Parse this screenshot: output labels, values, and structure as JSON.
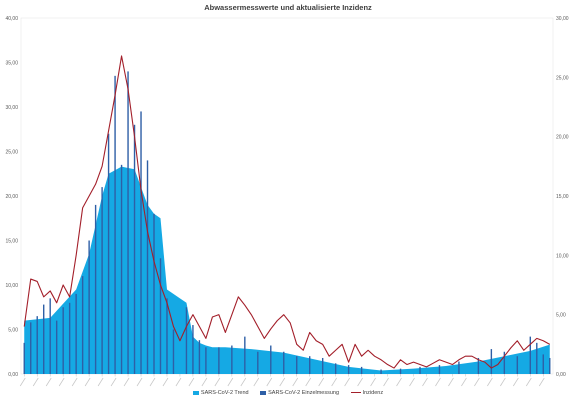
{
  "chart_data": {
    "type": "area",
    "title": "Abwassermesswerte und aktualisierte Inzidenz",
    "y_left": {
      "ylim": [
        0,
        40
      ],
      "ticks": [
        "0,00",
        "5,00",
        "10,00",
        "15,00",
        "20,00",
        "25,00",
        "30,00",
        "35,00",
        "40,00"
      ]
    },
    "y_right": {
      "ylim": [
        0,
        30
      ],
      "ticks": [
        "0,00",
        "5,00",
        "10,00",
        "15,00",
        "20,00",
        "25,00",
        "30,00"
      ]
    },
    "x_count": 82,
    "grid": false,
    "legend_position": "bottom",
    "series": [
      {
        "name": "SARS-CoV-2 Trend",
        "kind": "area",
        "axis": "left",
        "color": "#15a9e4",
        "points": [
          [
            0,
            6.0
          ],
          [
            4,
            6.3
          ],
          [
            8,
            9.5
          ],
          [
            10,
            13.5
          ],
          [
            12,
            20.0
          ],
          [
            13,
            22.5
          ],
          [
            15,
            23.3
          ],
          [
            17,
            23.0
          ],
          [
            18,
            21.0
          ],
          [
            19,
            19.0
          ],
          [
            20,
            18.0
          ],
          [
            21,
            17.5
          ],
          [
            22,
            9.5
          ],
          [
            24,
            8.5
          ],
          [
            25,
            8.0
          ],
          [
            26,
            4.2
          ],
          [
            27,
            3.5
          ],
          [
            28,
            3.2
          ],
          [
            29,
            3.0
          ],
          [
            31,
            3.0
          ],
          [
            35,
            2.8
          ],
          [
            40,
            2.4
          ],
          [
            45,
            1.6
          ],
          [
            50,
            0.8
          ],
          [
            55,
            0.4
          ],
          [
            60,
            0.6
          ],
          [
            65,
            0.9
          ],
          [
            70,
            1.4
          ],
          [
            74,
            2.0
          ],
          [
            78,
            2.6
          ],
          [
            81,
            3.3
          ]
        ]
      },
      {
        "name": "SARS-CoV-2 Einzelmessung",
        "kind": "bar",
        "axis": "left",
        "color": "#2e5fa6",
        "points": [
          [
            0,
            3.5
          ],
          [
            1,
            5.8
          ],
          [
            2,
            6.5
          ],
          [
            3,
            7.8
          ],
          [
            4,
            8.5
          ],
          [
            5,
            6.0
          ],
          [
            6,
            7.5
          ],
          [
            7,
            8.0
          ],
          [
            8,
            9.0
          ],
          [
            9,
            11.0
          ],
          [
            10,
            15.0
          ],
          [
            11,
            19.0
          ],
          [
            12,
            21.0
          ],
          [
            13,
            27.0
          ],
          [
            14,
            33.5
          ],
          [
            15,
            23.5
          ],
          [
            16,
            34.0
          ],
          [
            17,
            28.0
          ],
          [
            18,
            29.5
          ],
          [
            19,
            24.0
          ],
          [
            20,
            18.0
          ],
          [
            21,
            13.0
          ],
          [
            22,
            8.5
          ],
          [
            23,
            5.0
          ],
          [
            25,
            7.5
          ],
          [
            26,
            5.5
          ],
          [
            27,
            3.8
          ],
          [
            28,
            3.0
          ],
          [
            30,
            3.0
          ],
          [
            32,
            3.2
          ],
          [
            34,
            4.2
          ],
          [
            36,
            2.5
          ],
          [
            38,
            3.2
          ],
          [
            40,
            2.5
          ],
          [
            42,
            2.0
          ],
          [
            44,
            2.0
          ],
          [
            46,
            1.8
          ],
          [
            48,
            1.2
          ],
          [
            50,
            1.0
          ],
          [
            52,
            0.8
          ],
          [
            55,
            0.5
          ],
          [
            58,
            0.6
          ],
          [
            61,
            0.8
          ],
          [
            64,
            1.0
          ],
          [
            67,
            1.4
          ],
          [
            70,
            1.8
          ],
          [
            72,
            2.8
          ],
          [
            74,
            2.5
          ],
          [
            76,
            2.0
          ],
          [
            78,
            4.2
          ],
          [
            79,
            3.5
          ],
          [
            80,
            2.2
          ],
          [
            81,
            1.8
          ]
        ]
      },
      {
        "name": "Inzidenz",
        "kind": "line",
        "axis": "right",
        "color": "#a31f2a",
        "points": [
          [
            0,
            4.0
          ],
          [
            1,
            8.0
          ],
          [
            2,
            7.8
          ],
          [
            3,
            6.5
          ],
          [
            4,
            7.0
          ],
          [
            5,
            6.0
          ],
          [
            6,
            7.5
          ],
          [
            7,
            6.5
          ],
          [
            8,
            10.0
          ],
          [
            9,
            14.0
          ],
          [
            10,
            15.0
          ],
          [
            11,
            16.0
          ],
          [
            12,
            17.5
          ],
          [
            13,
            20.5
          ],
          [
            14,
            23.5
          ],
          [
            15,
            26.8
          ],
          [
            16,
            24.0
          ],
          [
            17,
            20.0
          ],
          [
            18,
            15.5
          ],
          [
            19,
            12.0
          ],
          [
            20,
            9.5
          ],
          [
            21,
            7.5
          ],
          [
            22,
            6.0
          ],
          [
            23,
            4.0
          ],
          [
            24,
            2.8
          ],
          [
            25,
            4.0
          ],
          [
            26,
            5.0
          ],
          [
            27,
            4.0
          ],
          [
            28,
            3.0
          ],
          [
            29,
            4.8
          ],
          [
            30,
            5.0
          ],
          [
            31,
            3.5
          ],
          [
            32,
            5.0
          ],
          [
            33,
            6.5
          ],
          [
            34,
            5.8
          ],
          [
            35,
            5.0
          ],
          [
            36,
            4.0
          ],
          [
            37,
            3.0
          ],
          [
            38,
            3.8
          ],
          [
            39,
            4.5
          ],
          [
            40,
            5.0
          ],
          [
            41,
            4.3
          ],
          [
            42,
            2.5
          ],
          [
            43,
            2.0
          ],
          [
            44,
            3.5
          ],
          [
            45,
            2.8
          ],
          [
            46,
            2.5
          ],
          [
            47,
            1.5
          ],
          [
            48,
            2.0
          ],
          [
            49,
            2.5
          ],
          [
            50,
            1.0
          ],
          [
            51,
            2.5
          ],
          [
            52,
            1.5
          ],
          [
            53,
            2.0
          ],
          [
            54,
            1.5
          ],
          [
            55,
            1.2
          ],
          [
            56,
            0.8
          ],
          [
            57,
            0.5
          ],
          [
            58,
            1.2
          ],
          [
            59,
            0.8
          ],
          [
            60,
            1.0
          ],
          [
            61,
            0.8
          ],
          [
            62,
            0.6
          ],
          [
            63,
            0.9
          ],
          [
            64,
            1.2
          ],
          [
            65,
            1.0
          ],
          [
            66,
            0.8
          ],
          [
            67,
            1.2
          ],
          [
            68,
            1.5
          ],
          [
            69,
            1.5
          ],
          [
            70,
            1.2
          ],
          [
            71,
            1.0
          ],
          [
            72,
            0.5
          ],
          [
            73,
            0.8
          ],
          [
            74,
            1.5
          ],
          [
            75,
            2.2
          ],
          [
            76,
            2.8
          ],
          [
            77,
            2.0
          ],
          [
            78,
            2.5
          ],
          [
            79,
            3.0
          ],
          [
            80,
            2.8
          ],
          [
            81,
            2.5
          ]
        ]
      }
    ]
  }
}
